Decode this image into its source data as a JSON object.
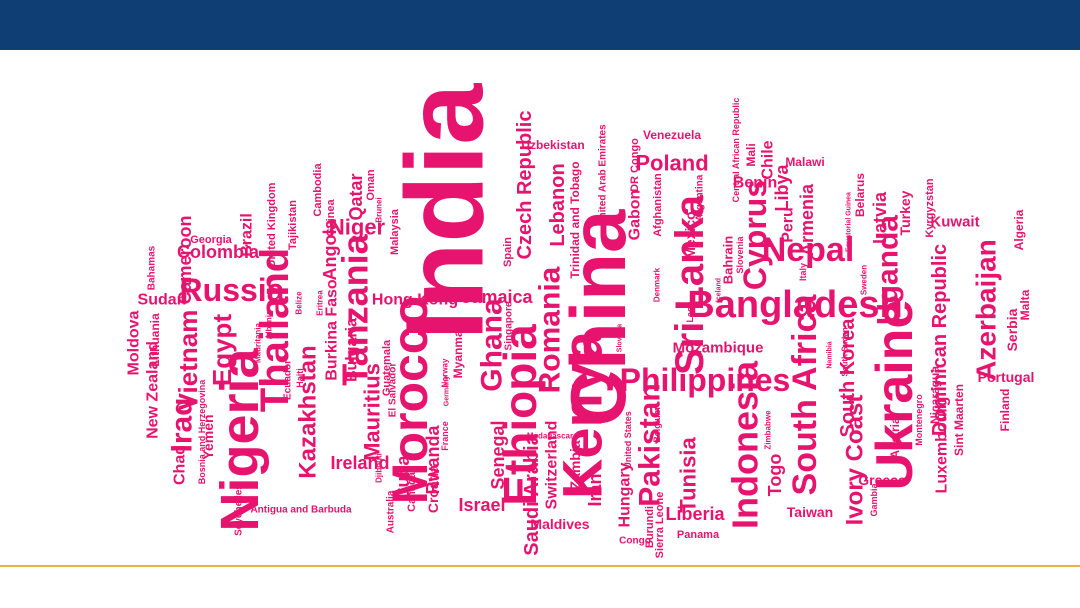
{
  "colors": {
    "header": "#0e3e73",
    "word": "#e6146f",
    "footer_line": "#e8b33a"
  },
  "cloud": {
    "words": [
      "India",
      "China",
      "Kenya",
      "Ukraine",
      "Nigeria",
      "Sri Lanka",
      "Ethiopia",
      "Morocco",
      "Bangladesh",
      "Philippines",
      "Indonesia",
      "Romania",
      "Thailand",
      "Tanzania",
      "South Africa",
      "Uganda",
      "Nepal",
      "Cyprus",
      "Russia",
      "Iraq",
      "Vietnam",
      "Egypt",
      "Pakistan",
      "Kazakhstan",
      "Ghana",
      "Azerbaijan",
      "Czech Republic",
      "Dominican Republic",
      "Ivory Coast",
      "South Korea",
      "Luxembourg",
      "Mauritius",
      "Tunisia",
      "Lebanon",
      "Hong Kong",
      "Latvia",
      "Armenia",
      "Libya",
      "Poland",
      "Saudi Arabia",
      "Sudan",
      "Cameroon",
      "Colombia",
      "Angola",
      "Niger",
      "Qatar",
      "Bulgaria",
      "Ireland",
      "Burkina Faso",
      "Jamaica",
      "Mozambique",
      "Liberia",
      "Togo",
      "Peru",
      "Benin",
      "Chile",
      "Mexico",
      "Gabon",
      "Afghanistan",
      "Bahrain",
      "Kuwait",
      "Turkey",
      "Serbia",
      "Malta",
      "Portugal",
      "Greece",
      "Taiwan",
      "Austria",
      "Nicaragua",
      "Finland",
      "Algeria",
      "Kyrgyzstan",
      "Belarus",
      "Mali",
      "Malawi",
      "Venezuela",
      "DR Congo",
      "United Arab Emirates",
      "Uzbekistan",
      "Trinidad and Tobago",
      "Spain",
      "Malaysia",
      "Brazil",
      "Georgia",
      "Tajikistan",
      "United Kingdom",
      "Cambodia",
      "Guinea",
      "Oman",
      "Moldova",
      "Lithuania",
      "New Zealand",
      "Bahamas",
      "Yemen",
      "Chad",
      "Bosnia and Herzegovina",
      "Seychelles",
      "Antigua and Barbuda",
      "Cuba",
      "Croatia",
      "Rwanda",
      "Canada",
      "Australia",
      "Israel",
      "Senegal",
      "Switzerland",
      "Zambia",
      "Iran",
      "Maldives",
      "Hungary",
      "Burundi",
      "Congo",
      "Sierra Leone",
      "Panama",
      "Guatemala",
      "El Salvador",
      "Ecuador",
      "Haiti",
      "Myanmar",
      "Somalia",
      "Singapore",
      "Sint Maarten",
      "Montenegro",
      "Gambia",
      "Zimbabwe",
      "Belgium",
      "United States",
      "Madagascar",
      "Italy",
      "Slovenia",
      "Argentina",
      "Denmark",
      "Iceland",
      "Sweden",
      "Laos",
      "Slovakia",
      "Equatorial Guinea",
      "Namibia",
      "Central African Republic",
      "Belize",
      "Eritrea",
      "Albania",
      "Mauritania",
      "Djibouti",
      "Norway",
      "Germany",
      "France",
      "Brunei",
      "South Sudan"
    ]
  }
}
